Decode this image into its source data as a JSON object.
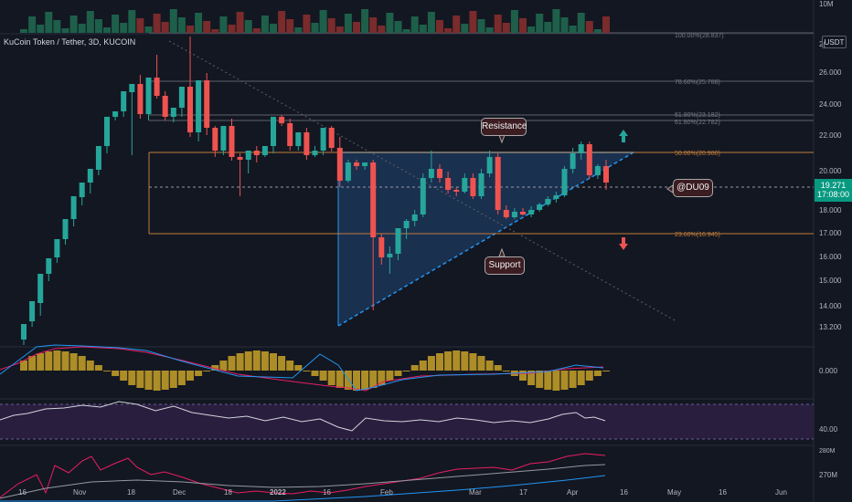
{
  "symbol": {
    "title": "KuCoin Token / Tether, 3D, KUCOIN",
    "currency": "USDT"
  },
  "price_badge": {
    "price": "19.271",
    "countdown": "17:08:00"
  },
  "volume_axis_label": "10M",
  "price_axis": [
    "26.000",
    "24.000",
    "22.000",
    "20.000",
    "18.000",
    "17.000",
    "16.000",
    "15.000",
    "14.000",
    "13.200"
  ],
  "price_axis_top_partial": "2(",
  "macd_axis": "0.000",
  "rsi_axis": "40.00",
  "bottom_axis": [
    "280M",
    "270M"
  ],
  "time_axis": [
    "16",
    "Nov",
    "18",
    "Dec",
    "18",
    "2022",
    "16",
    "Feb",
    "Mar",
    "17",
    "Apr",
    "16",
    "May",
    "16",
    "Jun"
  ],
  "fib_labels": {
    "top": "100.00%(28.837)",
    "f786": "78.60%(25.788)",
    "f618": "61.80%(23.182)",
    "f618b": "61.80%(22.782)",
    "f50": "50.00%(20.980)",
    "f236": "23.60%(16.945)"
  },
  "annotations": {
    "resistance": "Resistance",
    "support": "Support",
    "author": "@DU09"
  },
  "colors": {
    "up": "#26a69a",
    "down": "#ef5350",
    "background": "#131722",
    "triangle_fill": "#1e3a5f",
    "fib": "#c27d3a",
    "macd_hist": "#c9a227",
    "rsi_band": "#2a1e3f"
  }
}
